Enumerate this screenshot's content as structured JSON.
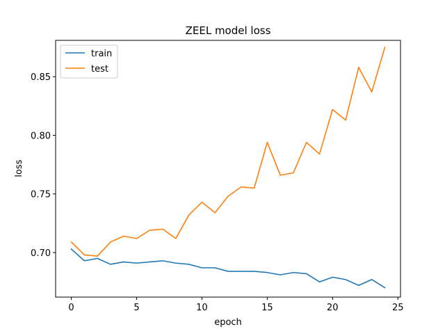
{
  "chart_data": {
    "type": "line",
    "title": "ZEEL model loss",
    "xlabel": "epoch",
    "ylabel": "loss",
    "xlim": [
      -1.2,
      25.2
    ],
    "ylim": [
      0.662,
      0.881
    ],
    "xticks": [
      0,
      5,
      10,
      15,
      20,
      25
    ],
    "yticks": [
      0.7,
      0.75,
      0.8,
      0.85
    ],
    "xtick_labels": [
      "0",
      "5",
      "10",
      "15",
      "20",
      "25"
    ],
    "ytick_labels": [
      "0.70",
      "0.75",
      "0.80",
      "0.85"
    ],
    "grid": false,
    "legend_position": "top-left",
    "x": [
      0,
      1,
      2,
      3,
      4,
      5,
      6,
      7,
      8,
      9,
      10,
      11,
      12,
      13,
      14,
      15,
      16,
      17,
      18,
      19,
      20,
      21,
      22,
      23,
      24
    ],
    "series": [
      {
        "name": "train",
        "color": "#1f77b4",
        "values": [
          0.703,
          0.693,
          0.695,
          0.69,
          0.692,
          0.691,
          0.692,
          0.693,
          0.691,
          0.69,
          0.687,
          0.687,
          0.684,
          0.684,
          0.684,
          0.683,
          0.681,
          0.683,
          0.682,
          0.675,
          0.679,
          0.677,
          0.672,
          0.677,
          0.67
        ]
      },
      {
        "name": "test",
        "color": "#ff7f0e",
        "values": [
          0.709,
          0.698,
          0.697,
          0.709,
          0.714,
          0.712,
          0.719,
          0.72,
          0.712,
          0.732,
          0.743,
          0.734,
          0.748,
          0.756,
          0.755,
          0.794,
          0.766,
          0.768,
          0.794,
          0.784,
          0.822,
          0.813,
          0.858,
          0.837,
          0.875
        ]
      }
    ]
  }
}
